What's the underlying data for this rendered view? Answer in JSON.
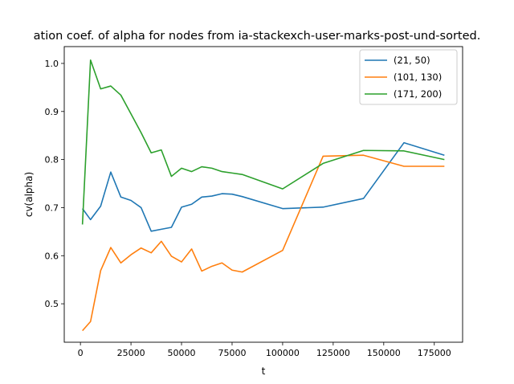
{
  "chart_data": {
    "type": "line",
    "title": "ation coef. of alpha for nodes from ia-stackexch-user-marks-post-und-sorted.",
    "xlabel": "t",
    "ylabel": "cv(alpha)",
    "xlim": [
      -8000,
      189000
    ],
    "ylim": [
      0.42,
      1.035
    ],
    "xticks": [
      0,
      25000,
      50000,
      75000,
      100000,
      125000,
      150000,
      175000
    ],
    "xtick_labels": [
      "0",
      "25000",
      "50000",
      "75000",
      "100000",
      "125000",
      "150000",
      "175000"
    ],
    "yticks": [
      0.5,
      0.6,
      0.7,
      0.8,
      0.9,
      1.0
    ],
    "ytick_labels": [
      "0.5",
      "0.6",
      "0.7",
      "0.8",
      "0.9",
      "1.0"
    ],
    "grid": false,
    "legend_position": "top-right",
    "series": [
      {
        "name": "(21, 50)",
        "color": "#1f77b4",
        "x": [
          1000,
          5000,
          10000,
          15000,
          20000,
          25000,
          30000,
          35000,
          40000,
          45000,
          50000,
          55000,
          60000,
          65000,
          70000,
          75000,
          80000,
          100000,
          120000,
          140000,
          160000,
          180000
        ],
        "y": [
          0.698,
          0.675,
          0.703,
          0.774,
          0.722,
          0.715,
          0.7,
          0.651,
          0.655,
          0.659,
          0.701,
          0.707,
          0.722,
          0.724,
          0.729,
          0.728,
          0.723,
          0.698,
          0.701,
          0.719,
          0.835,
          0.809
        ]
      },
      {
        "name": "(101, 130)",
        "color": "#ff7f0e",
        "x": [
          1000,
          5000,
          10000,
          15000,
          20000,
          25000,
          30000,
          35000,
          40000,
          45000,
          50000,
          55000,
          60000,
          65000,
          70000,
          75000,
          80000,
          100000,
          120000,
          140000,
          160000,
          180000
        ],
        "y": [
          0.444,
          0.463,
          0.569,
          0.617,
          0.585,
          0.602,
          0.616,
          0.606,
          0.63,
          0.599,
          0.587,
          0.614,
          0.568,
          0.578,
          0.585,
          0.57,
          0.566,
          0.611,
          0.807,
          0.809,
          0.786,
          0.786
        ]
      },
      {
        "name": "(171, 200)",
        "color": "#2ca02c",
        "x": [
          1000,
          5000,
          10000,
          15000,
          20000,
          25000,
          30000,
          35000,
          40000,
          45000,
          50000,
          55000,
          60000,
          65000,
          70000,
          75000,
          80000,
          100000,
          120000,
          140000,
          160000,
          180000
        ],
        "y": [
          0.665,
          1.007,
          0.947,
          0.953,
          0.934,
          0.895,
          0.856,
          0.814,
          0.82,
          0.765,
          0.782,
          0.775,
          0.785,
          0.782,
          0.775,
          0.772,
          0.769,
          0.739,
          0.792,
          0.819,
          0.818,
          0.8
        ]
      }
    ]
  }
}
